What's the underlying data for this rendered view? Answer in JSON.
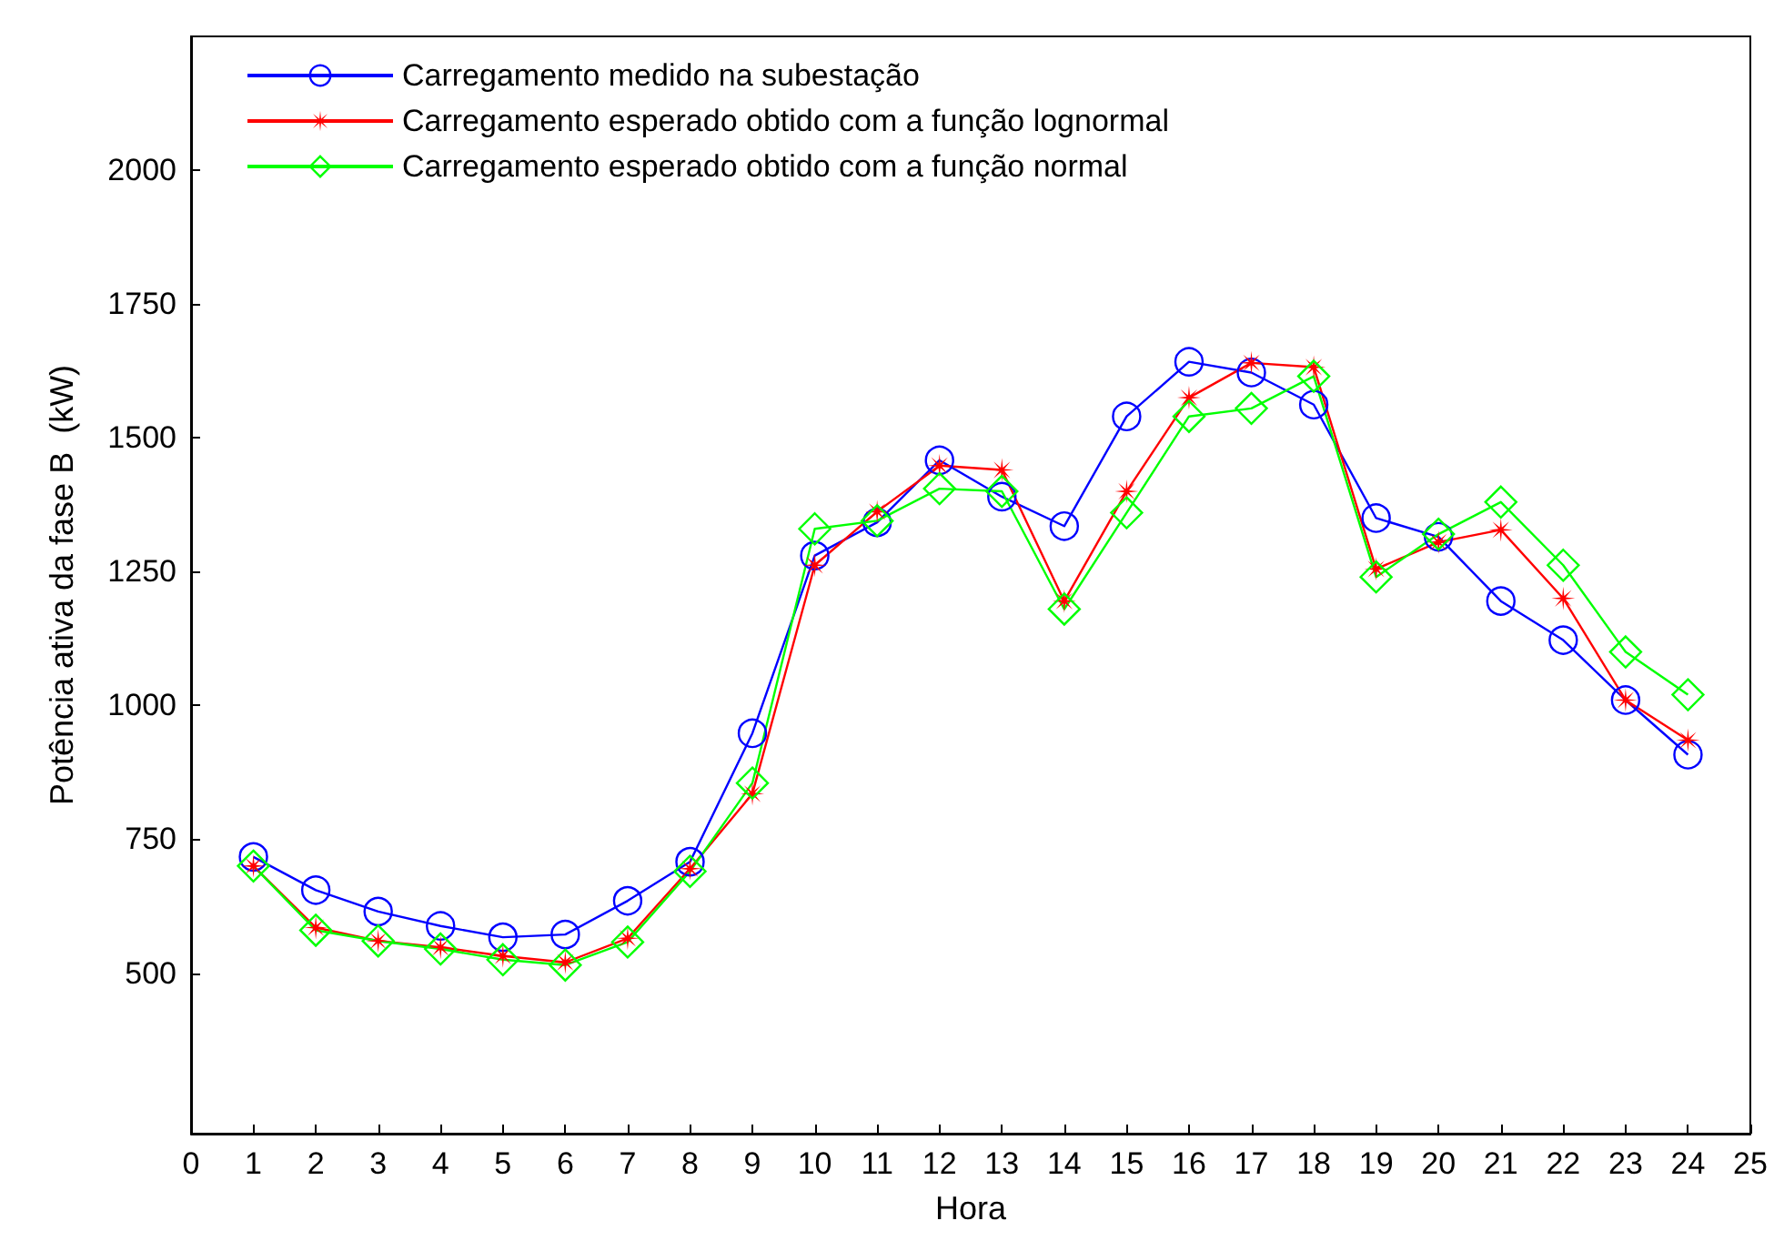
{
  "chart_data": {
    "type": "line",
    "xlabel": "Hora",
    "ylabel": "Potência ativa da fase B  (kW)",
    "x": [
      1,
      2,
      3,
      4,
      5,
      6,
      7,
      8,
      9,
      10,
      11,
      12,
      13,
      14,
      15,
      16,
      17,
      18,
      19,
      20,
      21,
      22,
      23,
      24
    ],
    "xlim": [
      0,
      25
    ],
    "xticks": [
      0,
      1,
      2,
      3,
      4,
      5,
      6,
      7,
      8,
      9,
      10,
      11,
      12,
      13,
      14,
      15,
      16,
      17,
      18,
      19,
      20,
      21,
      22,
      23,
      24,
      25
    ],
    "ylim": [
      200,
      2250
    ],
    "yticks": [
      500,
      750,
      1000,
      1250,
      1500,
      1750,
      2000
    ],
    "grid": false,
    "legend": "top left",
    "line_style": "solid",
    "series": [
      {
        "name": "Carregamento medido na subestação",
        "color": "#0000ff",
        "marker": "circle",
        "values": [
          717,
          655,
          615,
          588,
          567,
          572,
          635,
          708,
          948,
          1280,
          1342,
          1458,
          1390,
          1335,
          1540,
          1642,
          1622,
          1562,
          1350,
          1315,
          1195,
          1122,
          1010,
          908
        ]
      },
      {
        "name": "Carregamento esperado obtido com a função lognormal",
        "color": "#ff0000",
        "marker": "star",
        "values": [
          700,
          585,
          560,
          548,
          532,
          520,
          565,
          695,
          835,
          1262,
          1362,
          1448,
          1440,
          1195,
          1400,
          1575,
          1640,
          1632,
          1255,
          1305,
          1328,
          1200,
          1010,
          935
        ]
      },
      {
        "name": "Carregamento esperado obtido com a função normal",
        "color": "#00ff00",
        "marker": "diamond",
        "values": [
          700,
          580,
          560,
          545,
          525,
          515,
          558,
          690,
          855,
          1330,
          1345,
          1405,
          1400,
          1180,
          1360,
          1540,
          1555,
          1615,
          1240,
          1320,
          1380,
          1262,
          1100,
          1020
        ]
      }
    ]
  }
}
